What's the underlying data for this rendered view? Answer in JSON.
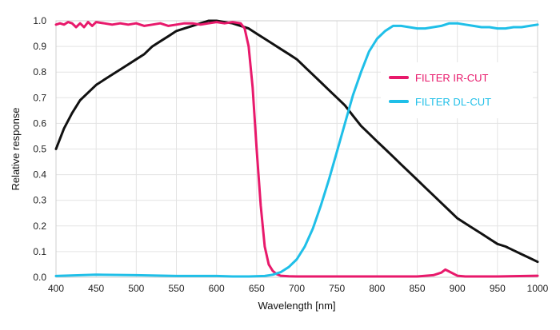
{
  "chart_data": {
    "type": "line",
    "title": "",
    "xlabel": "Wavelength [nm]",
    "ylabel": "Relative response",
    "xlim": [
      400,
      1000
    ],
    "ylim": [
      0,
      1.0
    ],
    "x_ticks": [
      400,
      450,
      500,
      550,
      600,
      650,
      700,
      750,
      800,
      850,
      900,
      950,
      1000
    ],
    "y_ticks": [
      "0.0",
      "0.1",
      "0.2",
      "0.3",
      "0.4",
      "0.5",
      "0.6",
      "0.7",
      "0.8",
      "0.9",
      "1.0"
    ],
    "grid": true,
    "legend_position": "right, upper-middle",
    "series": [
      {
        "key": "sensor",
        "color": "#111111",
        "x": [
          400,
          410,
          420,
          430,
          440,
          450,
          460,
          470,
          480,
          490,
          500,
          510,
          520,
          530,
          540,
          550,
          560,
          570,
          580,
          590,
          600,
          610,
          620,
          630,
          640,
          650,
          660,
          670,
          680,
          690,
          700,
          710,
          720,
          730,
          740,
          750,
          760,
          770,
          780,
          790,
          800,
          810,
          820,
          830,
          840,
          850,
          860,
          870,
          880,
          890,
          900,
          910,
          920,
          930,
          940,
          950,
          960,
          970,
          980,
          990,
          1000
        ],
        "y": [
          0.5,
          0.58,
          0.64,
          0.69,
          0.72,
          0.75,
          0.77,
          0.79,
          0.81,
          0.83,
          0.85,
          0.87,
          0.9,
          0.92,
          0.94,
          0.96,
          0.97,
          0.98,
          0.99,
          1.0,
          1.0,
          0.995,
          0.99,
          0.98,
          0.97,
          0.95,
          0.93,
          0.91,
          0.89,
          0.87,
          0.85,
          0.82,
          0.79,
          0.76,
          0.73,
          0.7,
          0.67,
          0.63,
          0.59,
          0.56,
          0.53,
          0.5,
          0.47,
          0.44,
          0.41,
          0.38,
          0.35,
          0.32,
          0.29,
          0.26,
          0.23,
          0.21,
          0.19,
          0.17,
          0.15,
          0.13,
          0.12,
          0.105,
          0.09,
          0.075,
          0.06
        ]
      },
      {
        "name": "FILTER IR-CUT",
        "color": "#e8196b",
        "x": [
          400,
          405,
          410,
          415,
          420,
          425,
          430,
          435,
          440,
          445,
          450,
          460,
          470,
          480,
          490,
          500,
          510,
          520,
          530,
          540,
          550,
          560,
          570,
          580,
          590,
          600,
          610,
          620,
          630,
          635,
          640,
          645,
          650,
          655,
          660,
          665,
          670,
          675,
          680,
          690,
          700,
          720,
          750,
          800,
          850,
          870,
          880,
          885,
          890,
          900,
          910,
          950,
          1000
        ],
        "y": [
          0.985,
          0.99,
          0.985,
          0.995,
          0.99,
          0.975,
          0.99,
          0.975,
          0.995,
          0.98,
          0.995,
          0.99,
          0.985,
          0.99,
          0.985,
          0.99,
          0.98,
          0.985,
          0.99,
          0.98,
          0.985,
          0.99,
          0.99,
          0.985,
          0.99,
          0.995,
          0.99,
          0.995,
          0.99,
          0.97,
          0.9,
          0.74,
          0.5,
          0.28,
          0.12,
          0.05,
          0.025,
          0.012,
          0.006,
          0.004,
          0.003,
          0.003,
          0.003,
          0.003,
          0.003,
          0.008,
          0.018,
          0.03,
          0.022,
          0.006,
          0.003,
          0.003,
          0.006
        ]
      },
      {
        "name": "FILTER DL-CUT",
        "color": "#1fbfe8",
        "x": [
          400,
          450,
          500,
          550,
          600,
          620,
          640,
          660,
          670,
          680,
          690,
          700,
          710,
          720,
          730,
          740,
          750,
          760,
          770,
          780,
          790,
          800,
          810,
          820,
          830,
          840,
          850,
          860,
          870,
          880,
          890,
          900,
          910,
          920,
          930,
          940,
          950,
          960,
          970,
          980,
          990,
          1000
        ],
        "y": [
          0.005,
          0.01,
          0.008,
          0.005,
          0.005,
          0.003,
          0.003,
          0.005,
          0.01,
          0.02,
          0.04,
          0.07,
          0.12,
          0.19,
          0.28,
          0.38,
          0.49,
          0.6,
          0.71,
          0.8,
          0.88,
          0.93,
          0.96,
          0.98,
          0.98,
          0.975,
          0.97,
          0.97,
          0.975,
          0.98,
          0.99,
          0.99,
          0.985,
          0.98,
          0.975,
          0.975,
          0.97,
          0.97,
          0.975,
          0.975,
          0.98,
          0.985
        ]
      }
    ]
  }
}
